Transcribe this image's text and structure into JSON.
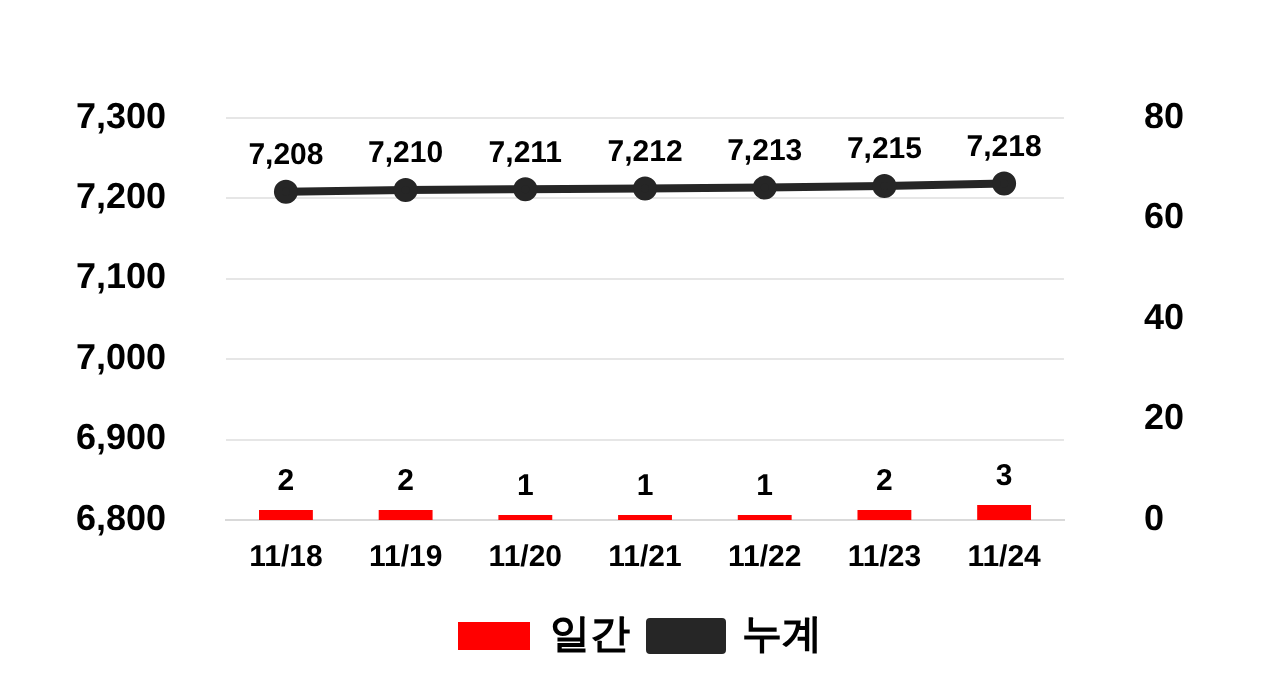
{
  "chart_data": {
    "type": "bar",
    "categories": [
      "11/18",
      "11/19",
      "11/20",
      "11/21",
      "11/22",
      "11/23",
      "11/24"
    ],
    "series": [
      {
        "name": "일간",
        "axis": "y2",
        "color": "#ff0000",
        "values": [
          2,
          2,
          1,
          1,
          1,
          2,
          3
        ],
        "value_labels": [
          "2",
          "2",
          "1",
          "1",
          "1",
          "2",
          "3"
        ]
      },
      {
        "name": "누계",
        "type": "line",
        "color": "#262626",
        "values": [
          7208,
          7210,
          7211,
          7212,
          7213,
          7215,
          7218
        ],
        "value_labels": [
          "7,208",
          "7,210",
          "7,211",
          "7,212",
          "7,213",
          "7,215",
          "7,218"
        ]
      }
    ],
    "ylim": [
      6800,
      7300
    ],
    "yticks": [
      {
        "value": 6800,
        "label": "6,800"
      },
      {
        "value": 6900,
        "label": "6,900"
      },
      {
        "value": 7000,
        "label": "7,000"
      },
      {
        "value": 7100,
        "label": "7,100"
      },
      {
        "value": 7200,
        "label": "7,200"
      },
      {
        "value": 7300,
        "label": "7,300"
      }
    ],
    "y2lim": [
      0,
      80
    ],
    "y2ticks": [
      0,
      20,
      40,
      60,
      80
    ],
    "grid": "y",
    "legend": "bottom",
    "marker": "circle",
    "line_style": "solid"
  }
}
